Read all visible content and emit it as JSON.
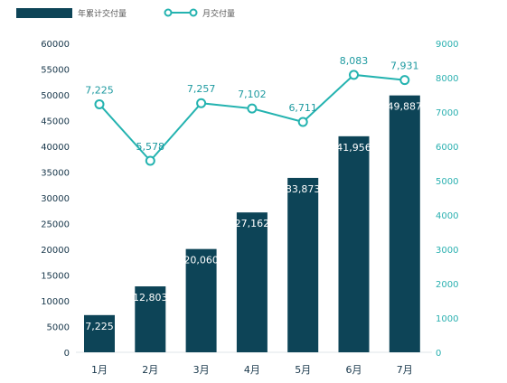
{
  "legend": {
    "bar_label": "年累计交付量",
    "line_label": "月交付量"
  },
  "colors": {
    "bar": "#0d4457",
    "line": "#24b3b0",
    "left_axis_text": "#17364a",
    "right_axis_text": "#2ab0b0"
  },
  "chart_data": {
    "type": "bar",
    "categories": [
      "1月",
      "2月",
      "3月",
      "4月",
      "5月",
      "6月",
      "7月"
    ],
    "series": [
      {
        "name": "年累计交付量",
        "type": "bar",
        "axis": "left",
        "values": [
          7225,
          12803,
          20060,
          27162,
          33873,
          41956,
          49887
        ],
        "labels": [
          "7,225",
          "12,803",
          "20,060",
          "27,162",
          "33,873",
          "41,956",
          "49,887"
        ]
      },
      {
        "name": "月交付量",
        "type": "line",
        "axis": "right",
        "values": [
          7225,
          5578,
          7257,
          7102,
          6711,
          8083,
          7931
        ],
        "labels": [
          "7,225",
          "5,578",
          "7,257",
          "7,102",
          "6,711",
          "8,083",
          "7,931"
        ]
      }
    ],
    "left_axis": {
      "ylim": [
        0,
        60000
      ],
      "ticks": [
        "0",
        "5000",
        "10000",
        "15000",
        "20000",
        "25000",
        "30000",
        "35000",
        "40000",
        "45000",
        "50000",
        "55000",
        "60000"
      ]
    },
    "right_axis": {
      "ylim": [
        0,
        9000
      ],
      "ticks": [
        "0",
        "1000",
        "2000",
        "3000",
        "4000",
        "5000",
        "6000",
        "7000",
        "8000",
        "9000"
      ]
    },
    "grid": false,
    "legend_position": "top-left"
  }
}
